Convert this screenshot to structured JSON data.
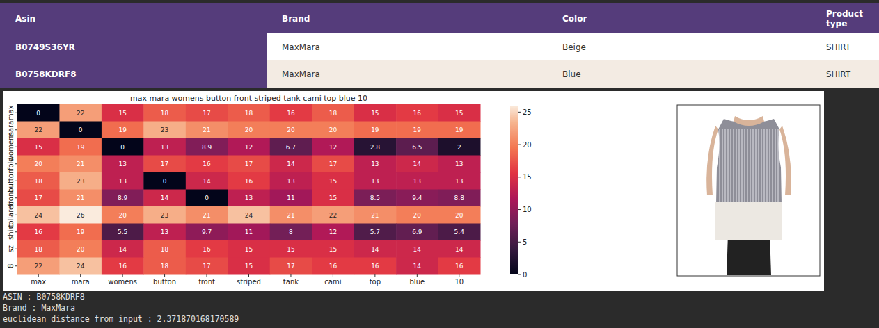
{
  "chart_data": {
    "type": "heatmap",
    "title": "max mara womens button front striped tank cami top blue 10",
    "x": [
      "max",
      "mara",
      "womens",
      "button",
      "front",
      "striped",
      "tank",
      "cami",
      "top",
      "blue",
      "10"
    ],
    "y": [
      "max",
      "mara",
      "womens",
      "fold",
      "button",
      "front",
      "collared",
      "shirt",
      "sz",
      "8"
    ],
    "values": [
      [
        0,
        22,
        15,
        18,
        17,
        18,
        16,
        18,
        15,
        16,
        15
      ],
      [
        22,
        0,
        19,
        23,
        21,
        20,
        20,
        20,
        19,
        19,
        19
      ],
      [
        15,
        19,
        0,
        13,
        8.9,
        12,
        6.7,
        12,
        2.8,
        6.5,
        2
      ],
      [
        20,
        21,
        13,
        17,
        16,
        17,
        14,
        17,
        13,
        14,
        13
      ],
      [
        18,
        23,
        13,
        0,
        14,
        16,
        13,
        15,
        13,
        13,
        13
      ],
      [
        17,
        21,
        8.9,
        14,
        0,
        13,
        11,
        15,
        8.5,
        9.4,
        8.8
      ],
      [
        24,
        26,
        20,
        23,
        21,
        24,
        21,
        22,
        21,
        20,
        20
      ],
      [
        16,
        19,
        5.5,
        13,
        9.7,
        11,
        8,
        12,
        5.7,
        6.9,
        5.4
      ],
      [
        18,
        20,
        14,
        18,
        16,
        15,
        15,
        15,
        14,
        14,
        14
      ],
      [
        22,
        24,
        16,
        18,
        17,
        15,
        17,
        16,
        16,
        14,
        16
      ]
    ],
    "clim": [
      0,
      26
    ],
    "cticks": [
      0,
      5,
      10,
      15,
      20,
      25
    ],
    "data_labels": true
  },
  "table": {
    "columns": [
      "Asin",
      "Brand",
      "Color",
      "Product type"
    ],
    "rows": [
      [
        "B0749S36YR",
        "MaxMara",
        "Beige",
        "SHIRT"
      ],
      [
        "B0758KDRF8",
        "MaxMara",
        "Blue",
        "SHIRT"
      ]
    ]
  },
  "output": {
    "lines": [
      "ASIN : B0758KDRF8",
      "Brand : MaxMara",
      "euclidean distance from input : 2.371870168170589"
    ]
  }
}
